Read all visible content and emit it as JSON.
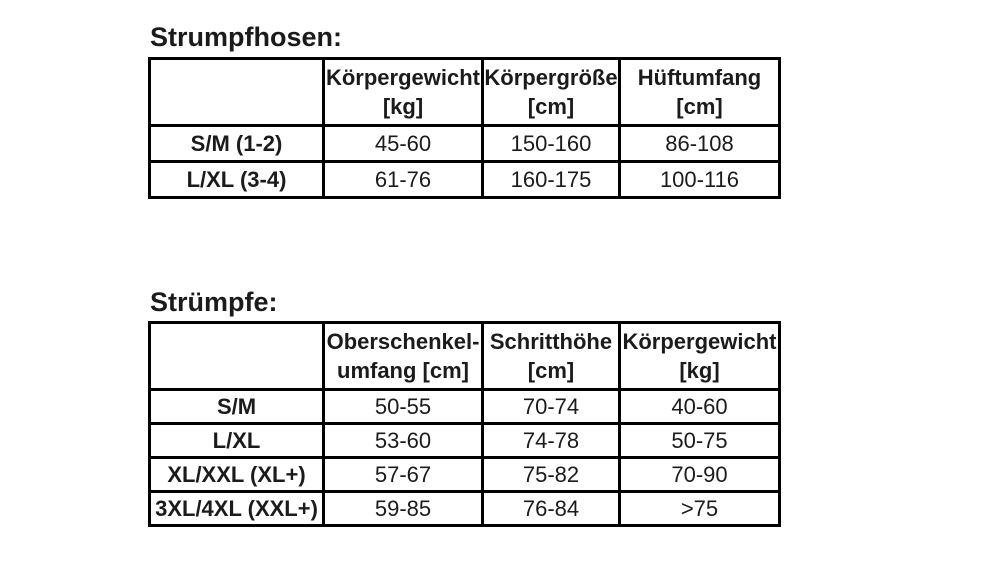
{
  "page": {
    "background": "#ffffff",
    "text_color": "#1b1b1b",
    "border_color": "#000000"
  },
  "strumpfhosen": {
    "title": "Strumpfhosen:",
    "columns": [
      {
        "line1": "",
        "line2": ""
      },
      {
        "line1": "Körpergewicht",
        "line2": "[kg]"
      },
      {
        "line1": "Körpergröße",
        "line2": "[cm]"
      },
      {
        "line1": "Hüftumfang",
        "line2": "[cm]"
      }
    ],
    "rows": [
      {
        "label": "S/M (1-2)",
        "values": [
          "45-60",
          "150-160",
          "86-108"
        ]
      },
      {
        "label": "L/XL (3-4)",
        "values": [
          "61-76",
          "160-175",
          "100-116"
        ]
      }
    ]
  },
  "struempfe": {
    "title": "Strümpfe:",
    "columns": [
      {
        "line1": "",
        "line2": ""
      },
      {
        "line1": "Oberschenkel-",
        "line2": "umfang [cm]"
      },
      {
        "line1": "Schritthöhe",
        "line2": "[cm]"
      },
      {
        "line1": "Körpergewicht",
        "line2": "[kg]"
      }
    ],
    "rows": [
      {
        "label": "S/M",
        "values": [
          "50-55",
          "70-74",
          "40-60"
        ]
      },
      {
        "label": "L/XL",
        "values": [
          "53-60",
          "74-78",
          "50-75"
        ]
      },
      {
        "label": "XL/XXL (XL+)",
        "values": [
          "57-67",
          "75-82",
          "70-90"
        ]
      },
      {
        "label": "3XL/4XL (XXL+)",
        "values": [
          "59-85",
          "76-84",
          ">75"
        ]
      }
    ]
  }
}
